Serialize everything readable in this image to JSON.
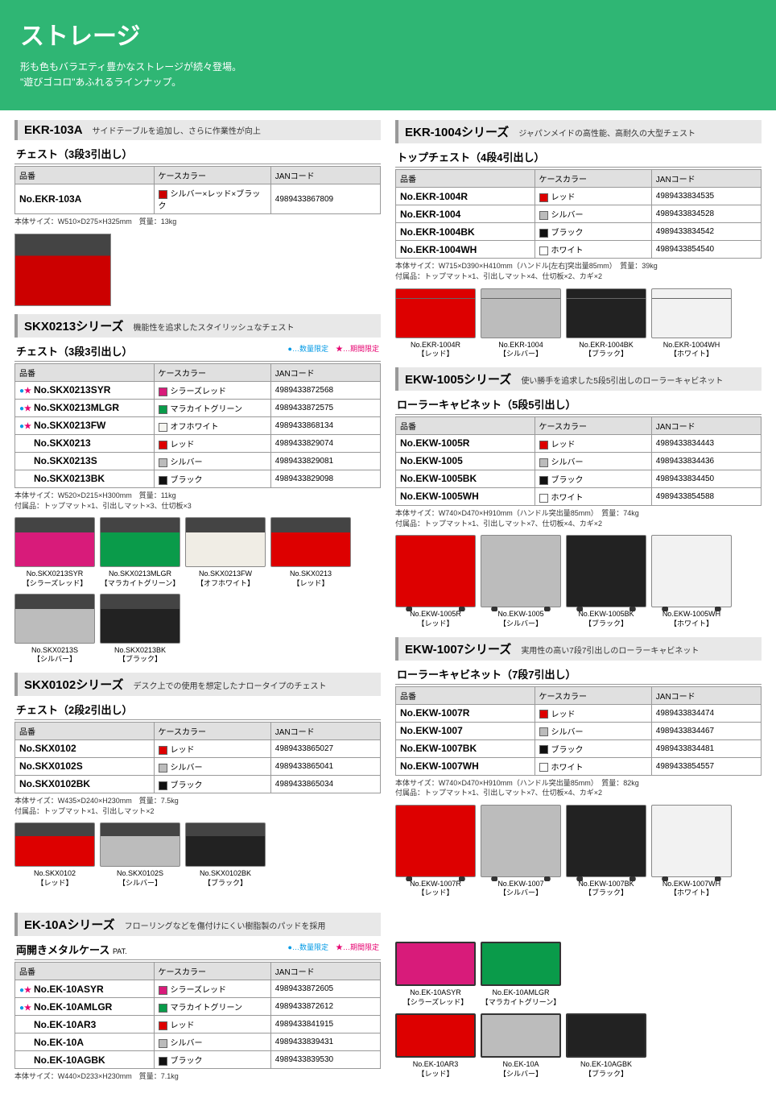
{
  "hero": {
    "title": "ストレージ",
    "line1": "形も色もバラエティ豊かなストレージが続々登場。",
    "line2": "\"遊びゴコロ\"あふれるラインナップ。"
  },
  "legend": {
    "limited_qty": "●…数量限定",
    "limited_time": "★…期間限定"
  },
  "table_headers": {
    "part": "品番",
    "color": "ケースカラー",
    "jan": "JANコード"
  },
  "ekr103a": {
    "id": "EKR-103A",
    "desc": "サイドテーブルを追加し、さらに作業性が向上",
    "subtype": "チェスト（3段3引出し）",
    "rows": [
      {
        "name": "No.EKR-103A",
        "color": "シルバー×レッド×ブラック",
        "swatch": "#c00",
        "jan": "4989433867809"
      }
    ],
    "note": "本体サイズ：W510×D275×H325mm　質量：13kg",
    "thumb_color": "#c00"
  },
  "skx0213": {
    "id": "SKX0213シリーズ",
    "desc": "機能性を追求したスタイリッシュなチェスト",
    "subtype": "チェスト（3段3引出し）",
    "rows": [
      {
        "marks": "●★",
        "name": "No.SKX0213SYR",
        "color": "シラーズレッド",
        "swatch": "#d81b7a",
        "jan": "4989433872568"
      },
      {
        "marks": "●★",
        "name": "No.SKX0213MLGR",
        "color": "マラカイトグリーン",
        "swatch": "#0a9b4a",
        "jan": "4989433872575"
      },
      {
        "marks": "●★",
        "name": "No.SKX0213FW",
        "color": "オフホワイト",
        "swatch": "#f5f5f0",
        "jan": "4989433868134"
      },
      {
        "marks": "",
        "name": "No.SKX0213",
        "color": "レッド",
        "swatch": "#d00",
        "jan": "4989433829074"
      },
      {
        "marks": "",
        "name": "No.SKX0213S",
        "color": "シルバー",
        "swatch": "#bbb",
        "jan": "4989433829081"
      },
      {
        "marks": "",
        "name": "No.SKX0213BK",
        "color": "ブラック",
        "swatch": "#111",
        "jan": "4989433829098"
      }
    ],
    "note1": "本体サイズ：W520×D215×H300mm　質量：11kg",
    "note2": "付属品：トップマット×1、引出しマット×3、仕切板×3",
    "thumbs": [
      {
        "name": "No.SKX0213SYR",
        "sub": "【シラーズレッド】",
        "c": "#d81b7a"
      },
      {
        "name": "No.SKX0213MLGR",
        "sub": "【マラカイトグリーン】",
        "c": "#0a9b4a"
      },
      {
        "name": "No.SKX0213FW",
        "sub": "【オフホワイト】",
        "c": "#f0ede5"
      },
      {
        "name": "No.SKX0213",
        "sub": "【レッド】",
        "c": "#d00"
      },
      {
        "name": "No.SKX0213S",
        "sub": "【シルバー】",
        "c": "#bcbcbc"
      },
      {
        "name": "No.SKX0213BK",
        "sub": "【ブラック】",
        "c": "#222"
      }
    ]
  },
  "skx0102": {
    "id": "SKX0102シリーズ",
    "desc": "デスク上での使用を想定したナロータイプのチェスト",
    "subtype": "チェスト（2段2引出し）",
    "rows": [
      {
        "name": "No.SKX0102",
        "color": "レッド",
        "swatch": "#d00",
        "jan": "4989433865027"
      },
      {
        "name": "No.SKX0102S",
        "color": "シルバー",
        "swatch": "#bbb",
        "jan": "4989433865041"
      },
      {
        "name": "No.SKX0102BK",
        "color": "ブラック",
        "swatch": "#111",
        "jan": "4989433865034"
      }
    ],
    "note1": "本体サイズ：W435×D240×H230mm　質量：7.5kg",
    "note2": "付属品：トップマット×1、引出しマット×2",
    "thumbs": [
      {
        "name": "No.SKX0102",
        "sub": "【レッド】",
        "c": "#d00"
      },
      {
        "name": "No.SKX0102S",
        "sub": "【シルバー】",
        "c": "#bcbcbc"
      },
      {
        "name": "No.SKX0102BK",
        "sub": "【ブラック】",
        "c": "#222"
      }
    ]
  },
  "ekr1004": {
    "id": "EKR-1004シリーズ",
    "desc": "ジャパンメイドの高性能、高耐久の大型チェスト",
    "subtype": "トップチェスト（4段4引出し）",
    "rows": [
      {
        "name": "No.EKR-1004R",
        "color": "レッド",
        "swatch": "#d00",
        "jan": "4989433834535"
      },
      {
        "name": "No.EKR-1004",
        "color": "シルバー",
        "swatch": "#bbb",
        "jan": "4989433834528"
      },
      {
        "name": "No.EKR-1004BK",
        "color": "ブラック",
        "swatch": "#111",
        "jan": "4989433834542"
      },
      {
        "name": "No.EKR-1004WH",
        "color": "ホワイト",
        "swatch": "#fff",
        "jan": "4989433854540"
      }
    ],
    "note1": "本体サイズ：W715×D390×H410mm（ハンドル[左右]突出量85mm）　質量：39kg",
    "note2": "付属品：トップマット×1、引出しマット×4、仕切板×2、カギ×2",
    "thumbs": [
      {
        "name": "No.EKR-1004R",
        "sub": "【レッド】",
        "c": "#d00"
      },
      {
        "name": "No.EKR-1004",
        "sub": "【シルバー】",
        "c": "#bcbcbc"
      },
      {
        "name": "No.EKR-1004BK",
        "sub": "【ブラック】",
        "c": "#222"
      },
      {
        "name": "No.EKR-1004WH",
        "sub": "【ホワイト】",
        "c": "#f2f2f2"
      }
    ]
  },
  "ekw1005": {
    "id": "EKW-1005シリーズ",
    "desc": "使い勝手を追求した5段5引出しのローラーキャビネット",
    "subtype": "ローラーキャビネット（5段5引出し）",
    "rows": [
      {
        "name": "No.EKW-1005R",
        "color": "レッド",
        "swatch": "#d00",
        "jan": "4989433834443"
      },
      {
        "name": "No.EKW-1005",
        "color": "シルバー",
        "swatch": "#bbb",
        "jan": "4989433834436"
      },
      {
        "name": "No.EKW-1005BK",
        "color": "ブラック",
        "swatch": "#111",
        "jan": "4989433834450"
      },
      {
        "name": "No.EKW-1005WH",
        "color": "ホワイト",
        "swatch": "#fff",
        "jan": "4989433854588"
      }
    ],
    "note1": "本体サイズ：W740×D470×H910mm（ハンドル突出量85mm）　質量：74kg",
    "note2": "付属品：トップマット×1、引出しマット×7、仕切板×4、カギ×2",
    "thumbs": [
      {
        "name": "No.EKW-1005R",
        "sub": "【レッド】",
        "c": "#d00"
      },
      {
        "name": "No.EKW-1005",
        "sub": "【シルバー】",
        "c": "#bcbcbc"
      },
      {
        "name": "No.EKW-1005BK",
        "sub": "【ブラック】",
        "c": "#222"
      },
      {
        "name": "No.EKW-1005WH",
        "sub": "【ホワイト】",
        "c": "#f2f2f2"
      }
    ]
  },
  "ekw1007": {
    "id": "EKW-1007シリーズ",
    "desc": "実用性の高い7段7引出しのローラーキャビネット",
    "subtype": "ローラーキャビネット（7段7引出し）",
    "rows": [
      {
        "name": "No.EKW-1007R",
        "color": "レッド",
        "swatch": "#d00",
        "jan": "4989433834474"
      },
      {
        "name": "No.EKW-1007",
        "color": "シルバー",
        "swatch": "#bbb",
        "jan": "4989433834467"
      },
      {
        "name": "No.EKW-1007BK",
        "color": "ブラック",
        "swatch": "#111",
        "jan": "4989433834481"
      },
      {
        "name": "No.EKW-1007WH",
        "color": "ホワイト",
        "swatch": "#fff",
        "jan": "4989433854557"
      }
    ],
    "note1": "本体サイズ：W740×D470×H910mm（ハンドル突出量85mm）　質量：82kg",
    "note2": "付属品：トップマット×1、引出しマット×7、仕切板×4、カギ×2",
    "thumbs": [
      {
        "name": "No.EKW-1007R",
        "sub": "【レッド】",
        "c": "#d00"
      },
      {
        "name": "No.EKW-1007",
        "sub": "【シルバー】",
        "c": "#bcbcbc"
      },
      {
        "name": "No.EKW-1007BK",
        "sub": "【ブラック】",
        "c": "#222"
      },
      {
        "name": "No.EKW-1007WH",
        "sub": "【ホワイト】",
        "c": "#f2f2f2"
      }
    ]
  },
  "ek10a": {
    "id": "EK-10Aシリーズ",
    "desc": "フローリングなどを傷付けにくい樹脂製のパッドを採用",
    "subtype": "両開きメタルケース",
    "pat": "PAT.",
    "rows": [
      {
        "marks": "●★",
        "name": "No.EK-10ASYR",
        "color": "シラーズレッド",
        "swatch": "#d81b7a",
        "jan": "4989433872605"
      },
      {
        "marks": "●★",
        "name": "No.EK-10AMLGR",
        "color": "マラカイトグリーン",
        "swatch": "#0a9b4a",
        "jan": "4989433872612"
      },
      {
        "marks": "",
        "name": "No.EK-10AR3",
        "color": "レッド",
        "swatch": "#d00",
        "jan": "4989433841915"
      },
      {
        "marks": "",
        "name": "No.EK-10A",
        "color": "シルバー",
        "swatch": "#bbb",
        "jan": "4989433839431"
      },
      {
        "marks": "",
        "name": "No.EK-10AGBK",
        "color": "ブラック",
        "swatch": "#111",
        "jan": "4989433839530"
      }
    ],
    "note": "本体サイズ：W440×D233×H230mm　質量：7.1kg",
    "thumbs": [
      {
        "name": "No.EK-10ASYR",
        "sub": "【シラーズレッド】",
        "c": "#d81b7a"
      },
      {
        "name": "No.EK-10AMLGR",
        "sub": "【マラカイトグリーン】",
        "c": "#0a9b4a"
      },
      {
        "name": "No.EK-10AR3",
        "sub": "【レッド】",
        "c": "#d00"
      },
      {
        "name": "No.EK-10A",
        "sub": "【シルバー】",
        "c": "#bcbcbc"
      },
      {
        "name": "No.EK-10AGBK",
        "sub": "【ブラック】",
        "c": "#222"
      }
    ]
  }
}
